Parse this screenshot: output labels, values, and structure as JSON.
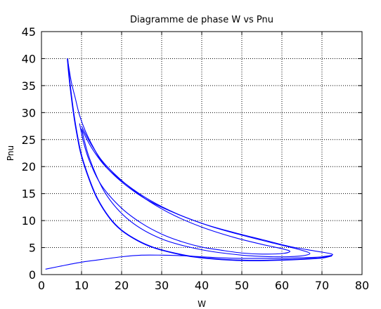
{
  "chart_data": {
    "type": "line",
    "title": "Diagramme de phase W vs Pnu",
    "xlabel": "W",
    "ylabel": "Pnu",
    "xlim": [
      0,
      80
    ],
    "ylim": [
      0,
      45
    ],
    "xticks": [
      "0",
      "10",
      "20",
      "30",
      "40",
      "50",
      "60",
      "70",
      "80"
    ],
    "yticks": [
      "0",
      "5",
      "10",
      "15",
      "20",
      "25",
      "30",
      "35",
      "40",
      "45"
    ],
    "grid": true,
    "line_color": "#0000ff",
    "series": [
      {
        "x": [
          1.0,
          5,
          10,
          15,
          20,
          25,
          30,
          35,
          40,
          45,
          50,
          55,
          60,
          64,
          68,
          70,
          72.5,
          72,
          68,
          62,
          55,
          48,
          40,
          32,
          26,
          22,
          18,
          15,
          13,
          11,
          9.5,
          8.5,
          7.5,
          6.8,
          6.5
        ],
        "y": [
          1.0,
          1.6,
          2.3,
          2.8,
          3.3,
          3.6,
          3.6,
          3.5,
          3.3,
          3.1,
          3.0,
          3.0,
          3.0,
          3.1,
          3.2,
          3.3,
          3.6,
          3.9,
          4.4,
          5.2,
          6.5,
          7.8,
          9.5,
          11.8,
          14.0,
          16.0,
          18.5,
          21.0,
          23.5,
          26.5,
          29.5,
          32.5,
          35.5,
          38.5,
          40.0
        ]
      },
      {
        "x": [
          6.5,
          7.0,
          8.0,
          9.0,
          10.0,
          12.0,
          14.0,
          17.0,
          20.0,
          24.0,
          28.0,
          33.0,
          38.0,
          45.0,
          52.0,
          60.0,
          66.0,
          70.0,
          72.5
        ],
        "y": [
          40.0,
          36.0,
          30.0,
          25.5,
          22.0,
          17.5,
          14.0,
          10.5,
          8.2,
          6.3,
          5.0,
          4.0,
          3.3,
          2.8,
          2.6,
          2.7,
          2.9,
          3.1,
          3.5
        ]
      },
      {
        "x": [
          9.5,
          10.5,
          12,
          15,
          20,
          25,
          30,
          35,
          40,
          45,
          50,
          55,
          60,
          62,
          60,
          55,
          48,
          40,
          33,
          27,
          22,
          18,
          15,
          12.5,
          11,
          10
        ],
        "y": [
          28.0,
          24.5,
          21.0,
          16.5,
          12.3,
          9.5,
          7.5,
          6.1,
          5.1,
          4.5,
          4.0,
          3.8,
          3.9,
          4.3,
          4.8,
          5.6,
          6.9,
          8.8,
          11.0,
          13.5,
          16.2,
          18.8,
          21.2,
          24.0,
          26.0,
          27.5
        ]
      },
      {
        "x": [
          10,
          12,
          16,
          22,
          30,
          40,
          50,
          58,
          64,
          67,
          64,
          58,
          50,
          42,
          34,
          27,
          21,
          16,
          12.5,
          10
        ],
        "y": [
          27.0,
          21.5,
          15.0,
          10.0,
          6.6,
          4.6,
          3.6,
          3.3,
          3.4,
          3.9,
          4.7,
          5.8,
          7.3,
          9.0,
          11.2,
          13.8,
          16.8,
          20.0,
          23.5,
          27.0
        ]
      }
    ]
  }
}
